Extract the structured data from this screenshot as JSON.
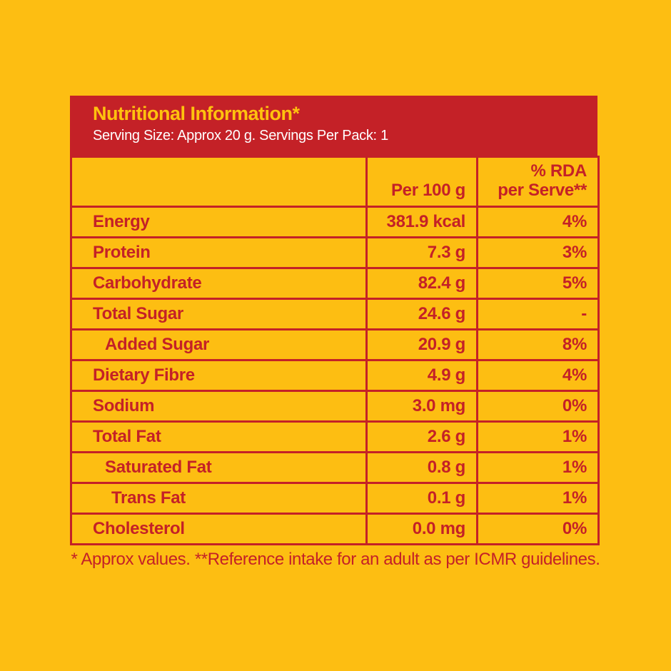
{
  "colors": {
    "background": "#FDBE12",
    "accent_red": "#C42127",
    "title_yellow": "#FFC20E",
    "subtitle_white": "#FFFFFF"
  },
  "header": {
    "title": "Nutritional Information*",
    "subtitle": "Serving Size: Approx 20 g. Servings Per Pack: 1"
  },
  "table": {
    "col_per100_label": "Per 100 g",
    "col_rda_line1": "% RDA",
    "col_rda_line2": "per Serve**",
    "rows": [
      {
        "label": "Energy",
        "per_100g": "381.9 kcal",
        "rda": "4%",
        "indent": 0
      },
      {
        "label": "Protein",
        "per_100g": "7.3 g",
        "rda": "3%",
        "indent": 0
      },
      {
        "label": "Carbohydrate",
        "per_100g": "82.4 g",
        "rda": "5%",
        "indent": 0
      },
      {
        "label": "Total Sugar",
        "per_100g": "24.6 g",
        "rda": "-",
        "indent": 0
      },
      {
        "label": "Added Sugar",
        "per_100g": "20.9 g",
        "rda": "8%",
        "indent": 1
      },
      {
        "label": "Dietary Fibre",
        "per_100g": "4.9 g",
        "rda": "4%",
        "indent": 0
      },
      {
        "label": "Sodium",
        "per_100g": "3.0 mg",
        "rda": "0%",
        "indent": 0
      },
      {
        "label": "Total Fat",
        "per_100g": "2.6 g",
        "rda": "1%",
        "indent": 0
      },
      {
        "label": "Saturated Fat",
        "per_100g": "0.8 g",
        "rda": "1%",
        "indent": 1
      },
      {
        "label": "Trans Fat",
        "per_100g": "0.1 g",
        "rda": "1%",
        "indent": 2
      },
      {
        "label": "Cholesterol",
        "per_100g": "0.0 mg",
        "rda": "0%",
        "indent": 0
      }
    ]
  },
  "footnote": "* Approx values. **Reference intake for an adult as per ICMR guidelines."
}
